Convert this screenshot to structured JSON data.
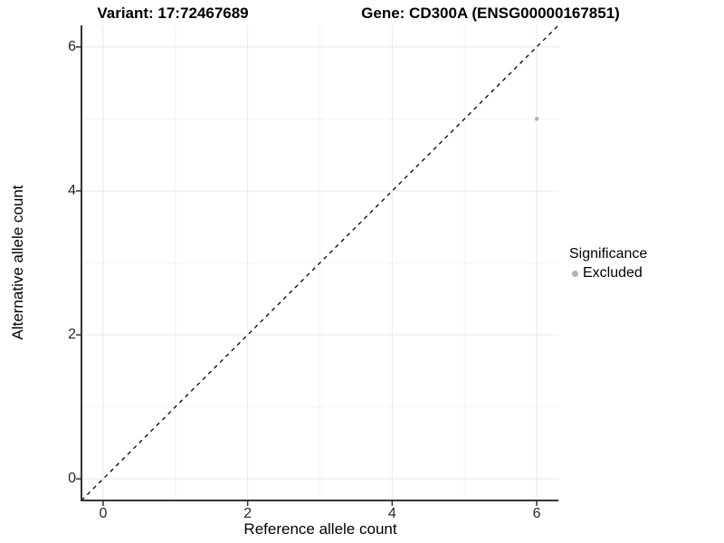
{
  "titles": {
    "variant": "Variant: 17:72467689",
    "gene": "Gene: CD300A (ENSG00000167851)"
  },
  "legend": {
    "title": "Significance",
    "items": [
      {
        "label": "Excluded",
        "color": "#b3b3b3",
        "marker": "dot"
      }
    ]
  },
  "colors": {
    "background": "#ffffff",
    "grid_major": "#e8e8e8",
    "grid_minor": "#f2f2f2",
    "axis_line": "#333333",
    "tick_mark": "#333333",
    "diagonal_line": "#000000",
    "point": "#b3b3b3"
  },
  "chart_data": {
    "type": "scatter",
    "title": "",
    "xlabel": "Reference allele count",
    "ylabel": "Alternative allele count",
    "xlim": [
      -0.3,
      6.3
    ],
    "ylim": [
      -0.3,
      6.3
    ],
    "x_ticks": [
      0,
      2,
      4,
      6
    ],
    "y_ticks": [
      0,
      2,
      4,
      6
    ],
    "x_minor_ticks": [
      1,
      3,
      5
    ],
    "y_minor_ticks": [
      1,
      3,
      5
    ],
    "grid": true,
    "legend_position": "right",
    "series": [
      {
        "name": "Excluded",
        "color": "#b3b3b3",
        "points": [
          {
            "x": 6,
            "y": 5
          }
        ]
      }
    ],
    "reference_line": {
      "type": "identity",
      "style": "dashed",
      "from": [
        -0.3,
        -0.3
      ],
      "to": [
        6.3,
        6.3
      ],
      "color": "#000000"
    }
  }
}
